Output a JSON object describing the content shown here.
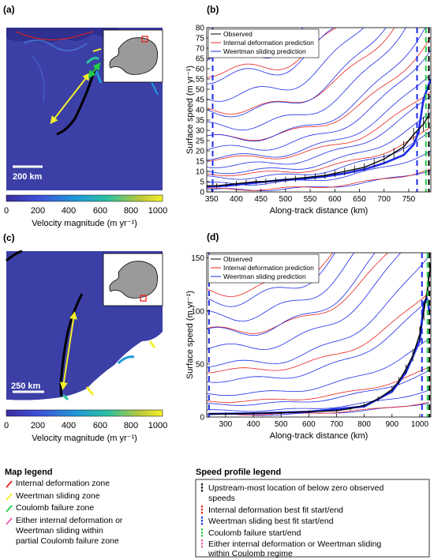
{
  "panels": {
    "a": {
      "label": "(a)",
      "scale_bar": "200 km",
      "colorbar_label": "Velocity magnitude (m yr⁻¹)",
      "colorbar_ticks": [
        "0",
        "200",
        "400",
        "600",
        "800",
        "1000"
      ]
    },
    "b": {
      "label": "(b)"
    },
    "c": {
      "label": "(c)",
      "scale_bar": "250 km",
      "colorbar_label": "Velocity magnitude (m yr⁻¹)",
      "colorbar_ticks": [
        "0",
        "200",
        "400",
        "600",
        "800",
        "1000"
      ]
    },
    "d": {
      "label": "(d)"
    }
  },
  "colors": {
    "observed": "#000000",
    "internal": "#e8211d",
    "weertman": "#1d2be8",
    "coulomb": "#22cc44",
    "either": "#e85aa8",
    "arrow": "#f5f02a"
  },
  "map_legend": {
    "title": "Map legend",
    "items": [
      {
        "label": "Internal deformation zone",
        "color": "#e8211d"
      },
      {
        "label": "Weertman sliding zone",
        "color": "#f5f02a"
      },
      {
        "label": "Coulomb failure zone",
        "color": "#22cc44"
      },
      {
        "label": "Either internal deformation or Weertman sliding within partial Coulomb failure zone",
        "color": "#e85aa8"
      }
    ]
  },
  "profile_legend": {
    "title": "Speed profile legend",
    "items": [
      {
        "label": "Upstream-most location of below zero observed speeds",
        "color": "#000000"
      },
      {
        "label": "Internal deformation best fit start/end",
        "color": "#e8211d"
      },
      {
        "label": "Weertman sliding best fit start/end",
        "color": "#1d2be8"
      },
      {
        "label": "Coulomb failure start/end",
        "color": "#22cc44"
      },
      {
        "label": "Either internal deformation or Weertman sliding within Coulomb regime",
        "color": "#e85aa8"
      }
    ]
  },
  "chart_data": [
    {
      "panel": "b",
      "type": "line",
      "xlabel": "Along-track distance (km)",
      "ylabel": "Surface speed (m yr⁻¹)",
      "xlim": [
        340,
        795
      ],
      "ylim": [
        0,
        80
      ],
      "xticks": [
        350,
        400,
        450,
        500,
        550,
        600,
        650,
        700,
        750
      ],
      "yticks": [
        0,
        5,
        10,
        15,
        20,
        25,
        30,
        35,
        40,
        45,
        50,
        55,
        60,
        65,
        70,
        75,
        80
      ],
      "legend": [
        "Observed",
        "Internal deformation prediction",
        "Weertman sliding prediction"
      ],
      "legend_position": "top-left",
      "observed": {
        "x": [
          340,
          360,
          380,
          400,
          420,
          440,
          460,
          480,
          500,
          520,
          540,
          560,
          580,
          600,
          620,
          640,
          660,
          680,
          700,
          720,
          740,
          760,
          780,
          790
        ],
        "y": [
          3,
          3,
          3.5,
          4,
          4.5,
          5,
          5,
          5.5,
          6,
          6.5,
          7,
          7.5,
          8,
          9,
          10,
          11,
          12,
          14,
          16,
          19,
          22,
          28,
          33,
          37
        ]
      },
      "weertman_best": {
        "x": [
          340,
          380,
          420,
          460,
          500,
          540,
          580,
          620,
          660,
          700,
          720,
          740,
          760,
          770,
          780,
          795
        ],
        "y": [
          2.5,
          3,
          4,
          5,
          6,
          6.5,
          7.5,
          9,
          11,
          14,
          16,
          18,
          23,
          29,
          45,
          55
        ]
      },
      "prediction_base_levels": [
        1,
        4,
        7,
        10,
        13,
        17,
        21,
        26,
        32,
        39,
        47,
        56,
        66
      ],
      "vlines": [
        {
          "x": 352,
          "color": "blue"
        },
        {
          "x": 767,
          "color": "blue"
        },
        {
          "x": 785,
          "color": "green"
        },
        {
          "x": 791,
          "color": "black"
        }
      ]
    },
    {
      "panel": "d",
      "type": "line",
      "xlabel": "Along-track distance (km)",
      "ylabel": "Surface speed (m yr⁻¹)",
      "xlim": [
        232,
        1040
      ],
      "ylim": [
        0,
        155
      ],
      "xticks": [
        300,
        400,
        500,
        600,
        700,
        800,
        900,
        1000
      ],
      "yticks": [
        0,
        50,
        100,
        150
      ],
      "legend": [
        "Observed",
        "Internal deformation prediction",
        "Weertman sliding prediction"
      ],
      "legend_position": "top-left",
      "observed": {
        "x": [
          240,
          300,
          400,
          500,
          600,
          700,
          750,
          800,
          850,
          900,
          925,
          950,
          975,
          1000,
          1015,
          1030,
          1040
        ],
        "y": [
          3,
          3,
          3.5,
          4,
          5,
          6,
          8,
          11,
          17,
          26,
          34,
          45,
          58,
          78,
          100,
          125,
          145
        ]
      },
      "weertman_best": {
        "x": [
          240,
          400,
          600,
          800,
          900,
          950,
          1000,
          1015,
          1025,
          1035
        ],
        "y": [
          3,
          3.5,
          5,
          10,
          24,
          42,
          72,
          108,
          112,
          100
        ]
      },
      "prediction_base_levels": [
        2,
        6,
        12,
        22,
        35,
        50,
        65,
        80,
        95,
        110
      ],
      "vlines": [
        {
          "x": 240,
          "color": "blue"
        },
        {
          "x": 1008,
          "color": "blue"
        },
        {
          "x": 1028,
          "color": "green"
        },
        {
          "x": 1035,
          "color": "black"
        }
      ]
    }
  ]
}
